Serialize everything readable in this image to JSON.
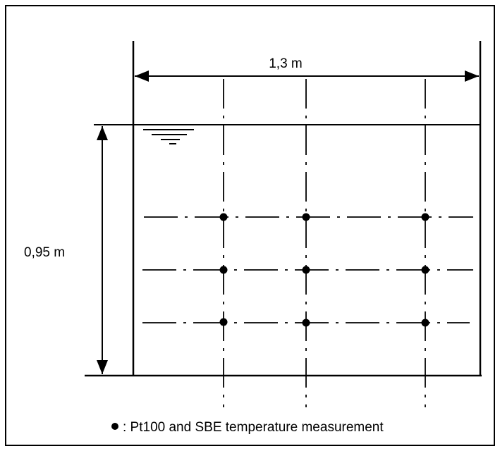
{
  "diagram": {
    "width_label": "1,3 m",
    "height_label": "0,95 m",
    "legend_text": ": Pt100 and SBE temperature measurement",
    "line_color": "#000000",
    "background": "#ffffff",
    "icons": [
      "water-level-icon",
      "sensor-dot-icon"
    ]
  }
}
